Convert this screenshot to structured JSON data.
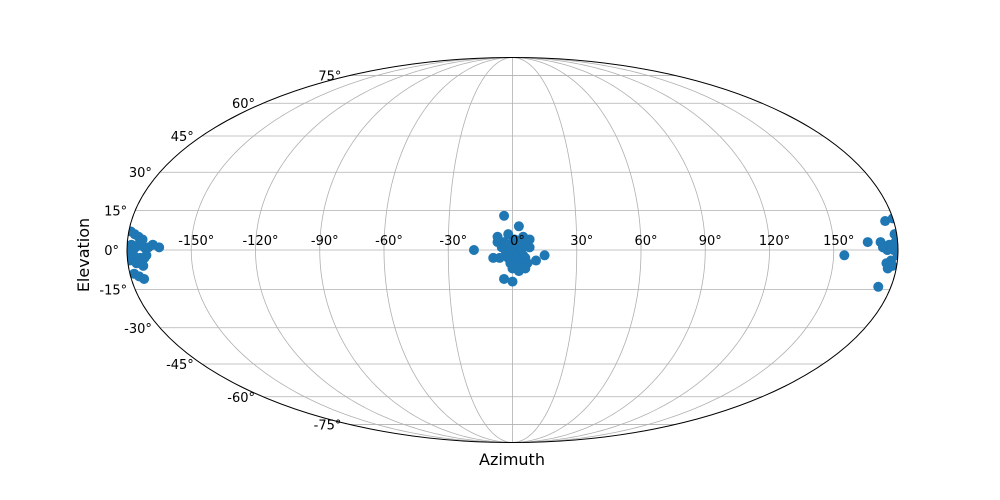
{
  "chart_data": {
    "type": "scatter",
    "projection": "mollweide",
    "title": "",
    "xlabel": "Azimuth",
    "ylabel": "Elevation",
    "xlim": [
      -180,
      180
    ],
    "ylim": [
      -90,
      90
    ],
    "grid": true,
    "marker_color": "#1f77b4",
    "grid_color": "#b0b0b0",
    "x_ticks": [
      -150,
      -120,
      -90,
      -60,
      -30,
      0,
      30,
      60,
      90,
      120,
      150
    ],
    "x_tick_labels": [
      "-150°",
      "-120°",
      "-90°",
      "-60°",
      "-30°",
      "0°",
      "30°",
      "60°",
      "90°",
      "120°",
      "150°"
    ],
    "y_ticks": [
      75,
      60,
      45,
      30,
      15,
      0,
      -15,
      -30,
      -45,
      -60,
      -75
    ],
    "y_tick_labels": [
      "75°",
      "60°",
      "45°",
      "30°",
      "15°",
      "0°",
      "-15°",
      "-30°",
      "-45°",
      "-60°",
      "-75°"
    ],
    "series": [
      {
        "points": [
          [
            -4,
            13
          ],
          [
            3,
            9
          ],
          [
            -2,
            6
          ],
          [
            5,
            5
          ],
          [
            1,
            4
          ],
          [
            -7,
            3
          ],
          [
            -4,
            3
          ],
          [
            0,
            3
          ],
          [
            3,
            3
          ],
          [
            6,
            2
          ],
          [
            -5,
            1
          ],
          [
            -1,
            1
          ],
          [
            2,
            1
          ],
          [
            4,
            0
          ],
          [
            8,
            1
          ],
          [
            -3,
            -1
          ],
          [
            0,
            -1
          ],
          [
            2,
            -2
          ],
          [
            5,
            -2
          ],
          [
            -9,
            -3
          ],
          [
            -6,
            -3
          ],
          [
            -2,
            -3
          ],
          [
            1,
            -4
          ],
          [
            4,
            -4
          ],
          [
            6,
            -3
          ],
          [
            11,
            -4
          ],
          [
            15,
            -2
          ],
          [
            -1,
            -5
          ],
          [
            2,
            -6
          ],
          [
            4,
            -5
          ],
          [
            7,
            -5
          ],
          [
            0,
            -7
          ],
          [
            3,
            -8
          ],
          [
            6,
            -7
          ],
          [
            -4,
            -11
          ],
          [
            0,
            -12
          ],
          [
            -18,
            0
          ],
          [
            -7,
            5
          ],
          [
            8,
            4
          ],
          [
            -3,
            2
          ],
          [
            -179,
            7
          ],
          [
            -177,
            6
          ],
          [
            -175,
            5
          ],
          [
            -174,
            3
          ],
          [
            -178,
            2
          ],
          [
            -176,
            1
          ],
          [
            -172,
            1
          ],
          [
            -170,
            1
          ],
          [
            -165,
            1
          ],
          [
            -179,
            -1
          ],
          [
            -177,
            -2
          ],
          [
            -174,
            -3
          ],
          [
            -172,
            -3
          ],
          [
            -179,
            -4
          ],
          [
            -176,
            -5
          ],
          [
            -173,
            -6
          ],
          [
            -178,
            -9
          ],
          [
            -176,
            -10
          ],
          [
            -174,
            -11
          ],
          [
            -168,
            2
          ],
          [
            -171,
            -2
          ],
          [
            -173,
            4
          ],
          [
            176,
            11
          ],
          [
            180,
            12
          ],
          [
            166,
            3
          ],
          [
            172,
            3
          ],
          [
            176,
            2
          ],
          [
            179,
            3
          ],
          [
            175,
            0
          ],
          [
            178,
            0
          ],
          [
            155,
            -2
          ],
          [
            177,
            -4
          ],
          [
            175,
            -5
          ],
          [
            176,
            -7
          ],
          [
            174,
            -14
          ],
          [
            178,
            -6
          ],
          [
            179,
            6
          ],
          [
            173,
            1
          ],
          [
            177,
            1
          ],
          [
            180,
            -2
          ]
        ]
      }
    ]
  }
}
